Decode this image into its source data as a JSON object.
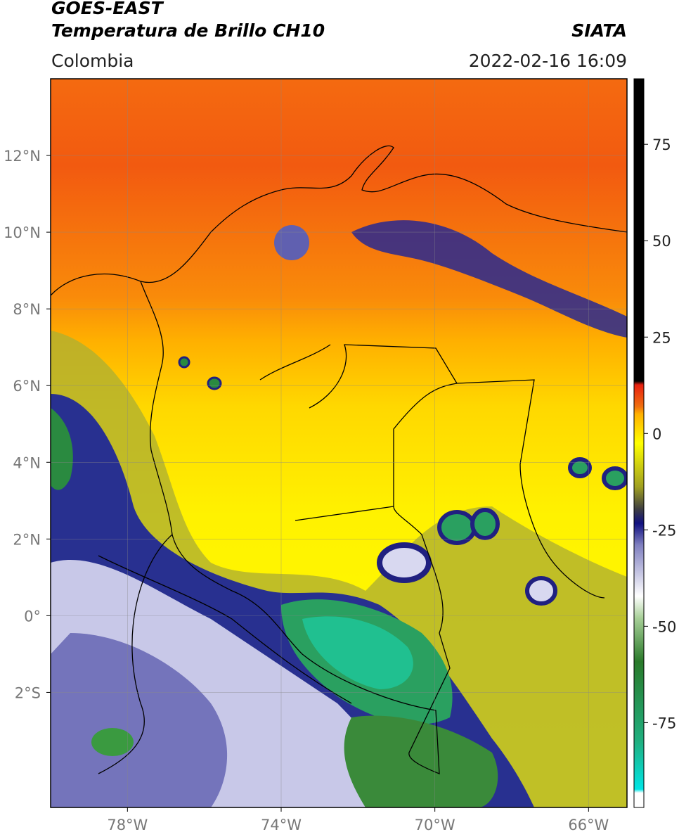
{
  "header": {
    "title": "GOES-EAST",
    "subtitle": "Temperatura de Brillo CH10",
    "source": "SIATA",
    "region": "Colombia",
    "datetime": "2022-02-16 16:09"
  },
  "map": {
    "xlim": [
      -80,
      -65
    ],
    "ylim": [
      -5,
      14
    ],
    "xticks": [
      {
        "value": -78,
        "label": "78°W"
      },
      {
        "value": -74,
        "label": "74°W"
      },
      {
        "value": -70,
        "label": "70°W"
      },
      {
        "value": -66,
        "label": "66°W"
      }
    ],
    "yticks": [
      {
        "value": 12,
        "label": "12°N"
      },
      {
        "value": 10,
        "label": "10°N"
      },
      {
        "value": 8,
        "label": "8°N"
      },
      {
        "value": 6,
        "label": "6°N"
      },
      {
        "value": 4,
        "label": "4°N"
      },
      {
        "value": 2,
        "label": "2°N"
      },
      {
        "value": 0,
        "label": "0°"
      },
      {
        "value": -2,
        "label": "2°S"
      }
    ],
    "grid": true
  },
  "colorbar": {
    "lim": [
      -97,
      92
    ],
    "ticks": [
      75,
      50,
      25,
      0,
      -25,
      -50,
      -75
    ]
  }
}
